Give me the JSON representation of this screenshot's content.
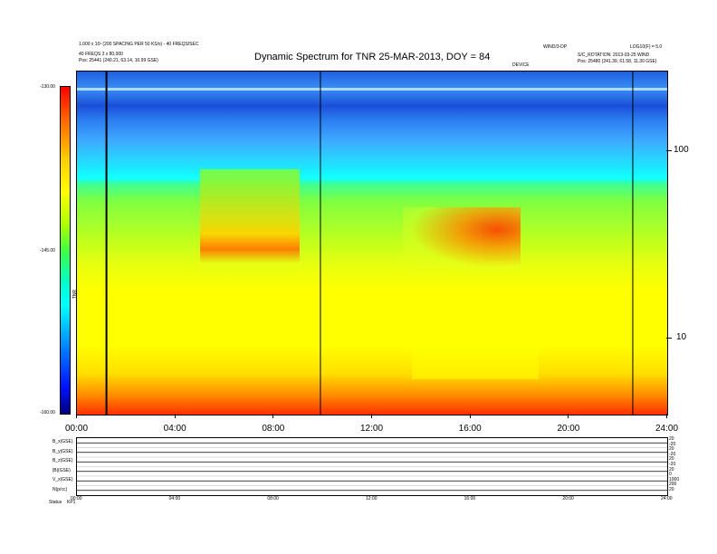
{
  "header": {
    "title": "Dynamic Spectrum for TNR 25-MAR-2013, DOY = 84",
    "left_line1": "1.000 x 10¹ (200 SPACING PER 50 KS/s) - 40 FREQS/SEC",
    "left_line2": "40 FREQS 3 x 80,000",
    "left_line3": "Pos:   25441 (240.21, 63.14, 10.99 GSE)",
    "right_label_a": "WIND/3-DP",
    "right_label_b": "LOG10(F) = 5.0",
    "right_line2": "S/C_ROTATION:  2013-03-25  WIND",
    "right_line3": "Pos:   25480 (241.39, 61.58, 11.30 GSE)",
    "mid_label": "DEVICE"
  },
  "colorbar": {
    "ticks": [
      "-130.00",
      "-145.00",
      "-160.00"
    ],
    "label": "TNR"
  },
  "chart_data": {
    "type": "heatmap",
    "title": "Dynamic Spectrum for TNR 25-MAR-2013, DOY = 84",
    "x_ticks": [
      "00:00",
      "04:00",
      "08:00",
      "12:00",
      "16:00",
      "20:00",
      "24:00"
    ],
    "xlim": [
      0,
      24
    ],
    "x_unit": "hours UT",
    "y_ticks_right": [
      "100",
      "10"
    ],
    "y_scale": "log",
    "color_range": [
      -160,
      -130
    ],
    "colormap": "rainbow",
    "vertical_lines_hours": [
      1.2,
      9.9,
      22.6
    ],
    "features": [
      {
        "name": "bright band",
        "start": 5,
        "end": 9,
        "level": "orange"
      },
      {
        "name": "drifting emission",
        "start": 13.5,
        "end": 18,
        "level": "red"
      }
    ]
  },
  "lower_panels": {
    "left_labels": [
      "B_x(GSE)",
      "B_y(GSE)",
      "B_z(GSE)",
      "|B|(GSE)",
      "V_x(GSE)",
      "N(p/cc)"
    ],
    "right_labels": [
      "20",
      "-20",
      "20",
      "-20",
      "20",
      "-20",
      "20",
      "0",
      "1000",
      "200",
      "20"
    ],
    "x_ticks": [
      "00:00",
      "04:00",
      "08:00",
      "12:00",
      "16:00",
      "20:00",
      "24:00"
    ],
    "footer_left": "Status",
    "footer_right": "KP1"
  },
  "colors": {
    "background": "#ffffff",
    "axis": "#000000",
    "vline": "#000000"
  }
}
